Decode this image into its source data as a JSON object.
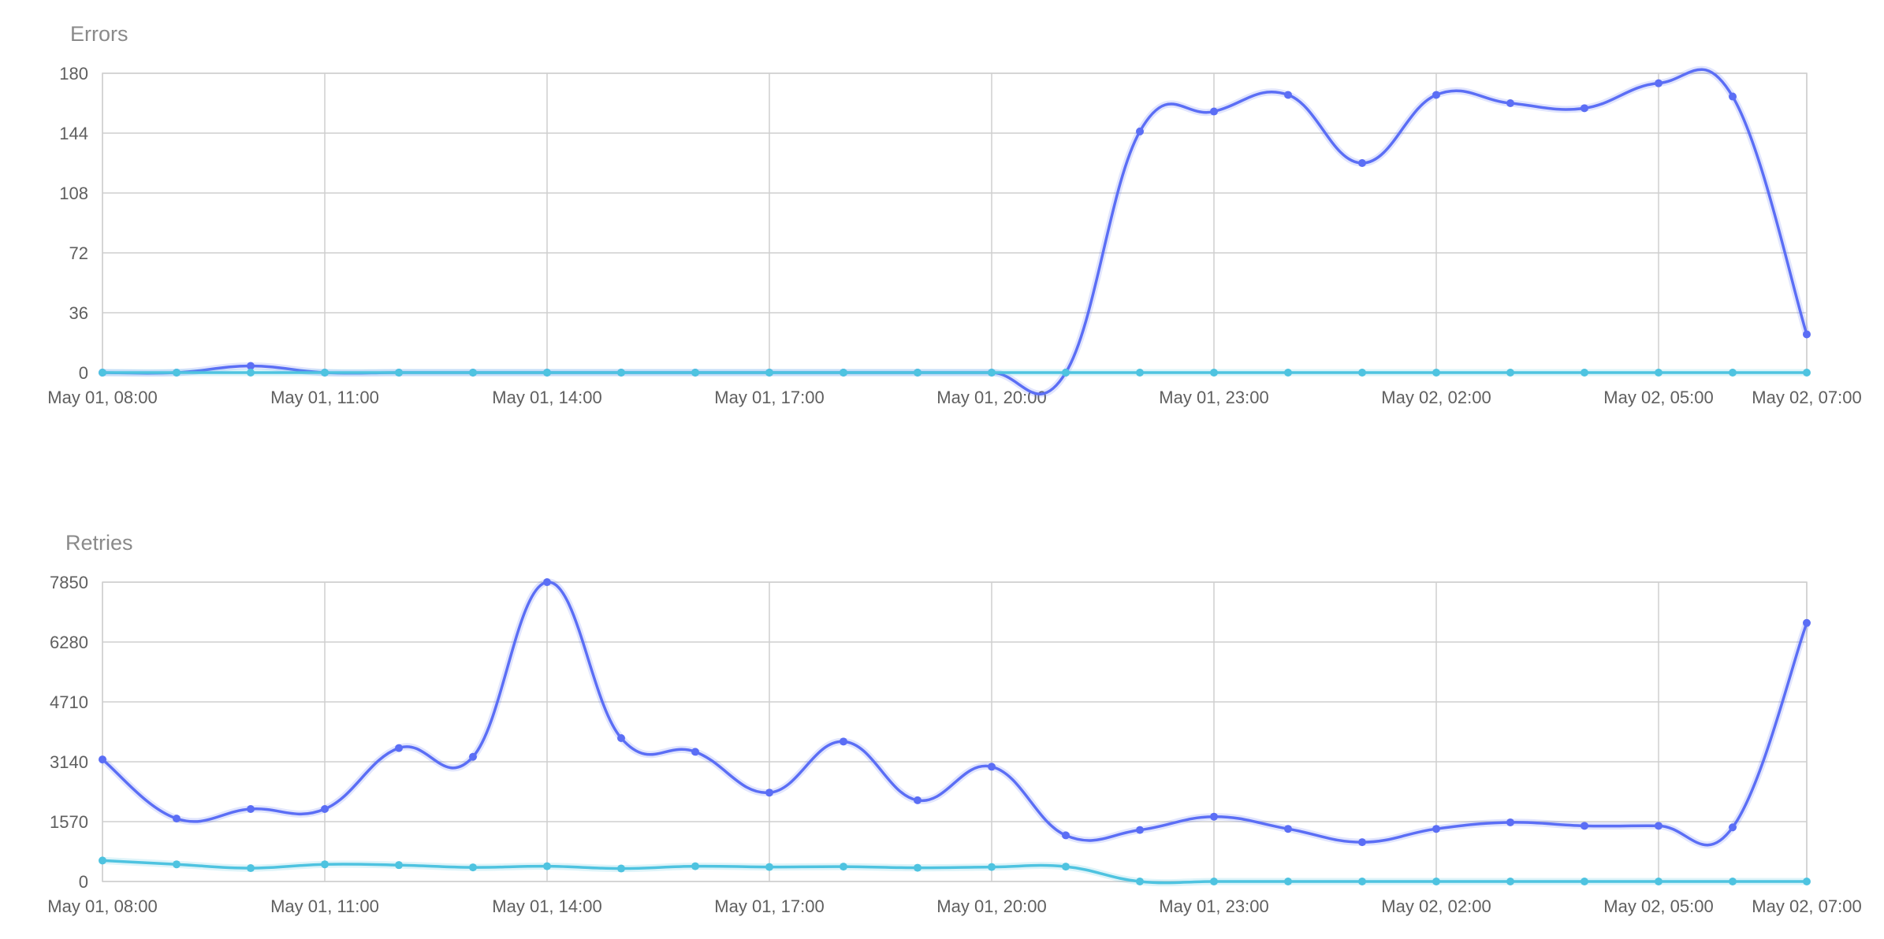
{
  "chart_data": [
    {
      "type": "line",
      "title": "Errors",
      "x": [
        "May 01, 08:00",
        "May 01, 09:00",
        "May 01, 10:00",
        "May 01, 11:00",
        "May 01, 12:00",
        "May 01, 13:00",
        "May 01, 14:00",
        "May 01, 15:00",
        "May 01, 16:00",
        "May 01, 17:00",
        "May 01, 18:00",
        "May 01, 19:00",
        "May 01, 20:00",
        "May 01, 21:00",
        "May 01, 22:00",
        "May 01, 23:00",
        "May 02, 00:00",
        "May 02, 01:00",
        "May 02, 02:00",
        "May 02, 03:00",
        "May 02, 04:00",
        "May 02, 05:00",
        "May 02, 06:00",
        "May 02, 07:00"
      ],
      "x_ticks": [
        "May 01, 08:00",
        "May 01, 11:00",
        "May 01, 14:00",
        "May 01, 17:00",
        "May 01, 20:00",
        "May 01, 23:00",
        "May 02, 02:00",
        "May 02, 05:00",
        "May 02, 07:00"
      ],
      "y_ticks": [
        0,
        36,
        72,
        108,
        144,
        180
      ],
      "ylim": [
        0,
        180
      ],
      "grid": true,
      "series": [
        {
          "color": "#5b6ef5",
          "values": [
            0,
            0,
            4,
            0,
            0,
            0,
            0,
            0,
            0,
            0,
            0,
            0,
            0,
            0,
            145,
            157,
            167,
            126,
            167,
            162,
            159,
            174,
            166,
            23
          ]
        },
        {
          "color": "#4ec3e0",
          "values": [
            0,
            0,
            0,
            0,
            0,
            0,
            0,
            0,
            0,
            0,
            0,
            0,
            0,
            0,
            0,
            0,
            0,
            0,
            0,
            0,
            0,
            0,
            0,
            0
          ]
        }
      ]
    },
    {
      "type": "line",
      "title": "Retries",
      "x": [
        "May 01, 08:00",
        "May 01, 09:00",
        "May 01, 10:00",
        "May 01, 11:00",
        "May 01, 12:00",
        "May 01, 13:00",
        "May 01, 14:00",
        "May 01, 15:00",
        "May 01, 16:00",
        "May 01, 17:00",
        "May 01, 18:00",
        "May 01, 19:00",
        "May 01, 20:00",
        "May 01, 21:00",
        "May 01, 22:00",
        "May 01, 23:00",
        "May 02, 00:00",
        "May 02, 01:00",
        "May 02, 02:00",
        "May 02, 03:00",
        "May 02, 04:00",
        "May 02, 05:00",
        "May 02, 06:00",
        "May 02, 07:00"
      ],
      "x_ticks": [
        "May 01, 08:00",
        "May 01, 11:00",
        "May 01, 14:00",
        "May 01, 17:00",
        "May 01, 20:00",
        "May 01, 23:00",
        "May 02, 02:00",
        "May 02, 05:00",
        "May 02, 07:00"
      ],
      "y_ticks": [
        0,
        1570,
        3140,
        4710,
        6280,
        7850
      ],
      "ylim": [
        0,
        7850
      ],
      "grid": true,
      "series": [
        {
          "color": "#5b6ef5",
          "values": [
            3200,
            1650,
            1900,
            1900,
            3500,
            3270,
            7850,
            3760,
            3400,
            2330,
            3670,
            2130,
            3010,
            1210,
            1350,
            1700,
            1380,
            1030,
            1380,
            1550,
            1460,
            1460,
            1420,
            6780
          ]
        },
        {
          "color": "#4ec3e0",
          "values": [
            550,
            450,
            350,
            450,
            430,
            370,
            400,
            340,
            400,
            380,
            390,
            360,
            380,
            390,
            0,
            0,
            0,
            0,
            0,
            0,
            0,
            0,
            0,
            0
          ]
        }
      ]
    }
  ]
}
